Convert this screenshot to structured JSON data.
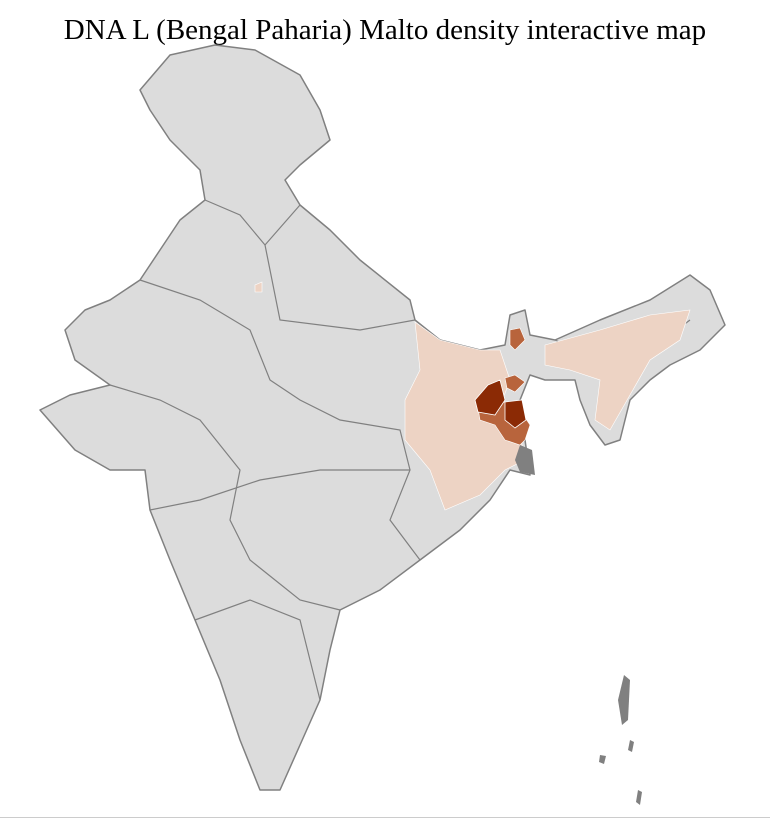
{
  "title": "DNA L (Bengal Paharia) Malto density interactive map",
  "colors": {
    "no_data": "#dcdcdc",
    "low": "#edd3c4",
    "medium": "#b8643c",
    "high": "#8b2a05",
    "state_border": "#808080",
    "district_border": "#ffffff"
  }
}
